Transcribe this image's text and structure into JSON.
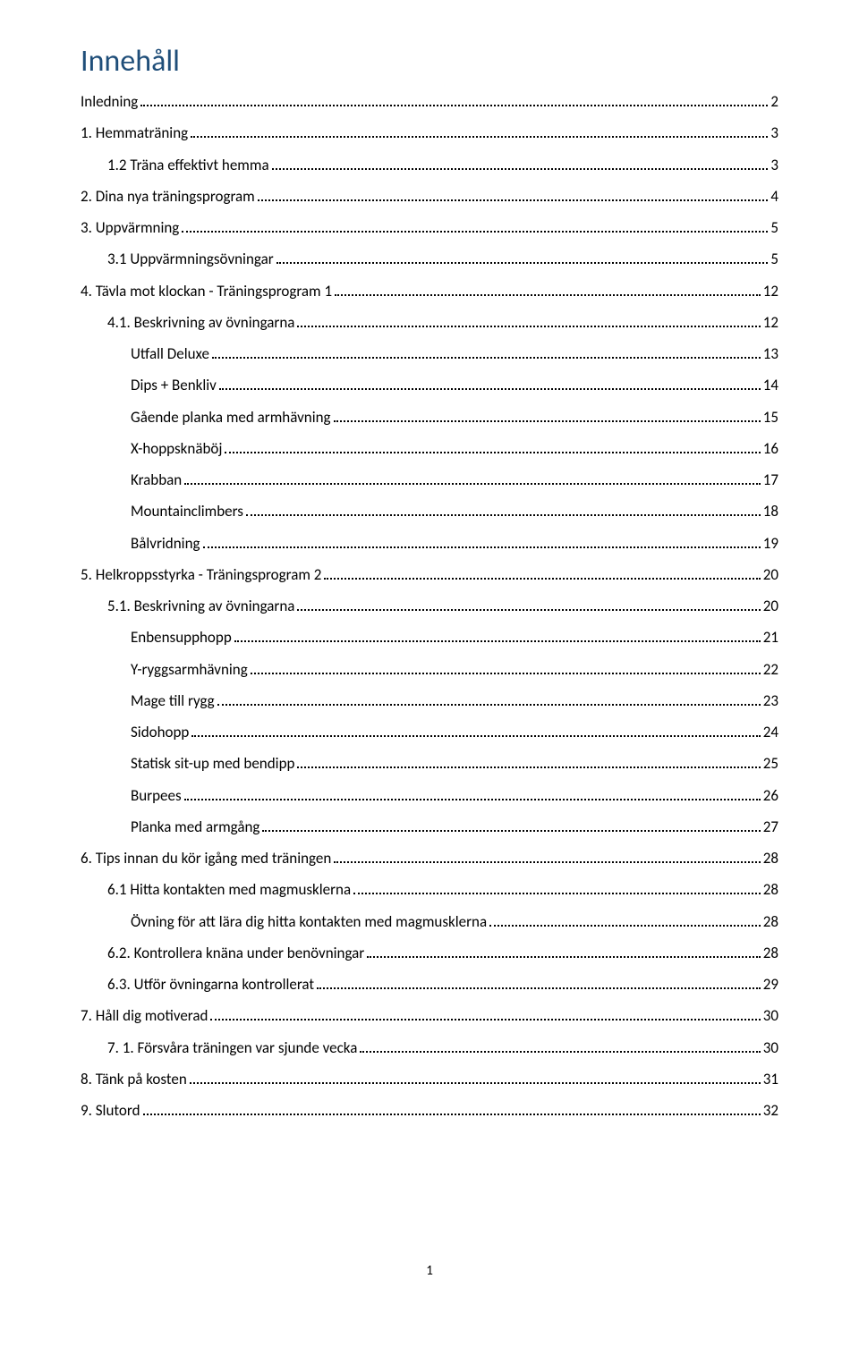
{
  "title": "Innehåll",
  "title_color": "#1f4e79",
  "text_color": "#000000",
  "footer_page": "1",
  "entries": [
    {
      "label": "Inledning",
      "page": "2",
      "indent": 0
    },
    {
      "label": "1. Hemmaträning",
      "page": "3",
      "indent": 0
    },
    {
      "label": "1.2 Träna effektivt hemma",
      "page": "3",
      "indent": 1
    },
    {
      "label": "2. Dina nya träningsprogram",
      "page": "4",
      "indent": 0
    },
    {
      "label": "3. Uppvärmning",
      "page": "5",
      "indent": 0
    },
    {
      "label": "3.1 Uppvärmningsövningar",
      "page": "5",
      "indent": 1
    },
    {
      "label": "4. Tävla mot klockan - Träningsprogram 1",
      "page": "12",
      "indent": 0
    },
    {
      "label": "4.1. Beskrivning av övningarna",
      "page": "12",
      "indent": 1
    },
    {
      "label": "Utfall Deluxe",
      "page": "13",
      "indent": 2
    },
    {
      "label": "Dips + Benkliv",
      "page": "14",
      "indent": 2
    },
    {
      "label": "Gående planka med armhävning",
      "page": "15",
      "indent": 2
    },
    {
      "label": "X-hoppsknäböj",
      "page": "16",
      "indent": 2
    },
    {
      "label": "Krabban",
      "page": "17",
      "indent": 2
    },
    {
      "label": "Mountainclimbers",
      "page": "18",
      "indent": 2
    },
    {
      "label": "Bålvridning",
      "page": "19",
      "indent": 2
    },
    {
      "label": "5. Helkroppsstyrka - Träningsprogram 2",
      "page": "20",
      "indent": 0
    },
    {
      "label": "5.1. Beskrivning av övningarna",
      "page": "20",
      "indent": 1
    },
    {
      "label": "Enbensupphopp",
      "page": "21",
      "indent": 2
    },
    {
      "label": "Y-ryggsarmhävning",
      "page": "22",
      "indent": 2
    },
    {
      "label": "Mage till rygg",
      "page": "23",
      "indent": 2
    },
    {
      "label": "Sidohopp",
      "page": "24",
      "indent": 2
    },
    {
      "label": "Statisk sit-up med bendipp",
      "page": "25",
      "indent": 2
    },
    {
      "label": "Burpees",
      "page": "26",
      "indent": 2
    },
    {
      "label": "Planka med armgång",
      "page": "27",
      "indent": 2
    },
    {
      "label": "6. Tips innan du kör igång med träningen",
      "page": "28",
      "indent": 0
    },
    {
      "label": "6.1 Hitta kontakten med magmusklerna",
      "page": "28",
      "indent": 1
    },
    {
      "label": "Övning för att lära dig hitta kontakten med magmusklerna",
      "page": "28",
      "indent": 2
    },
    {
      "label": "6.2. Kontrollera knäna under benövningar",
      "page": "28",
      "indent": 1
    },
    {
      "label": "6.3. Utför övningarna kontrollerat",
      "page": "29",
      "indent": 1
    },
    {
      "label": "7. Håll dig motiverad",
      "page": "30",
      "indent": 0
    },
    {
      "label": "7. 1. Försvåra träningen var sjunde vecka",
      "page": "30",
      "indent": 1
    },
    {
      "label": "8. Tänk på kosten",
      "page": "31",
      "indent": 0
    },
    {
      "label": "9. Slutord",
      "page": "32",
      "indent": 0
    }
  ]
}
